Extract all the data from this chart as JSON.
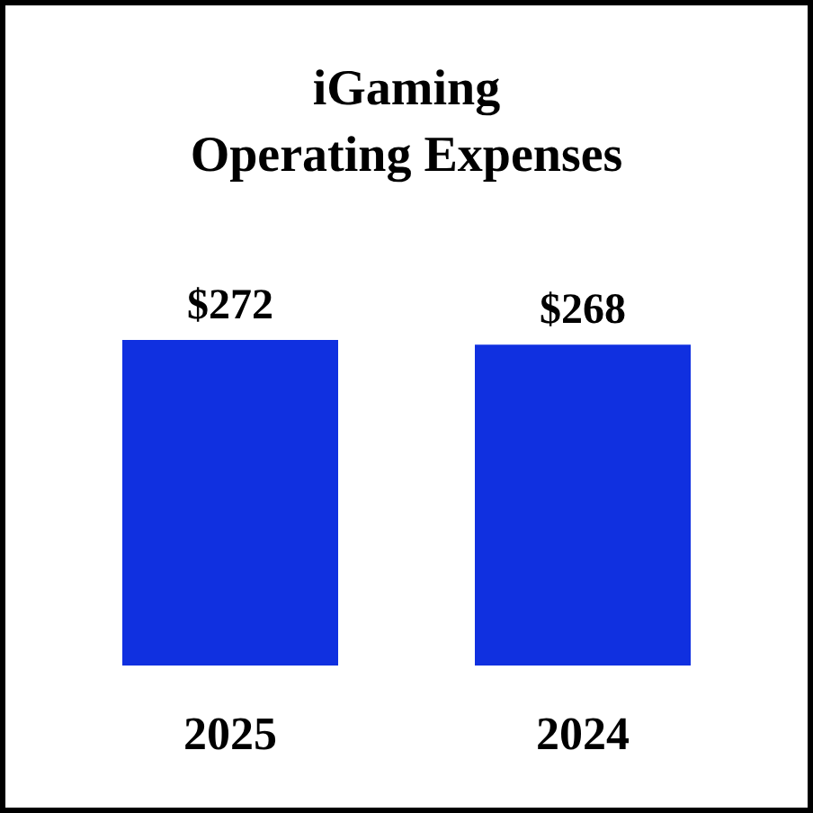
{
  "chart_data": {
    "type": "bar",
    "title": "iGaming\nOperating Expenses",
    "categories": [
      "2025",
      "2024"
    ],
    "values": [
      272,
      268
    ],
    "value_labels": [
      "$272",
      "$268"
    ],
    "color": "#1030e0"
  }
}
